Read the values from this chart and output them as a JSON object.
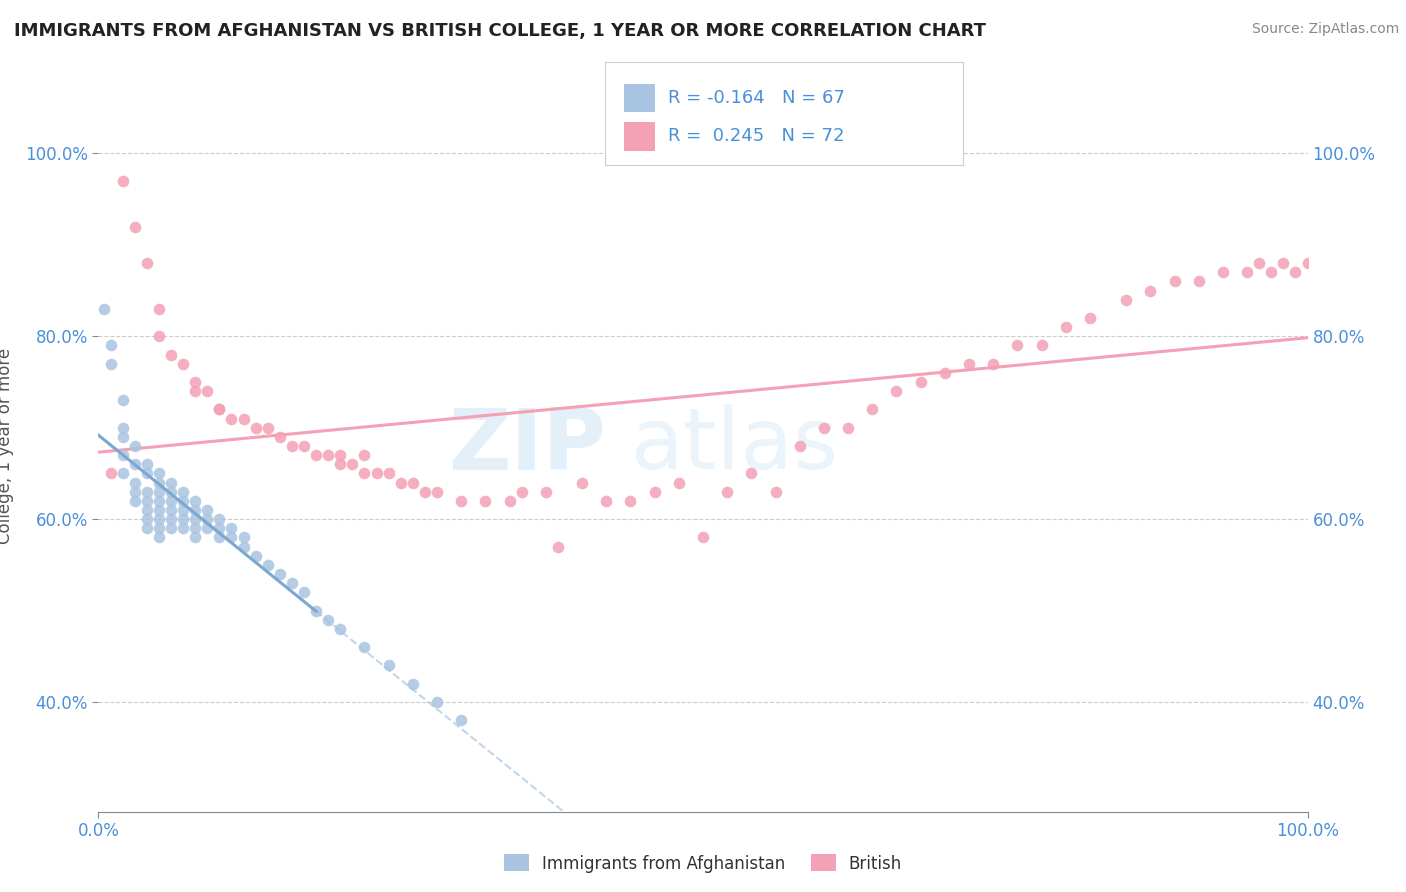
{
  "title": "IMMIGRANTS FROM AFGHANISTAN VS BRITISH COLLEGE, 1 YEAR OR MORE CORRELATION CHART",
  "source_text": "Source: ZipAtlas.com",
  "ylabel": "College, 1 year or more",
  "xlim": [
    0.0,
    1.0
  ],
  "ylim": [
    0.28,
    1.08
  ],
  "xtick_positions": [
    0.0,
    0.2,
    0.4,
    0.6,
    0.8,
    1.0
  ],
  "xtick_labels": [
    "0.0%",
    "",
    "",
    "",
    "",
    "100.0%"
  ],
  "ytick_positions": [
    0.4,
    0.6,
    0.8,
    1.0
  ],
  "ytick_labels": [
    "40.0%",
    "60.0%",
    "80.0%",
    "100.0%"
  ],
  "R_afghanistan": -0.164,
  "N_afghanistan": 67,
  "R_british": 0.245,
  "N_british": 72,
  "watermark_zip": "ZIP",
  "watermark_atlas": "atlas",
  "background_color": "#ffffff",
  "grid_color": "#cccccc",
  "title_color": "#222222",
  "tick_label_color": "#4a90d9",
  "afghanistan_dot_color": "#a8c4e0",
  "british_dot_color": "#f4a0b5",
  "british_line_color": "#f4a0b5",
  "afghanistan_solid_line_color": "#7ba8d0",
  "afghanistan_dashed_line_color": "#a8c4e0",
  "afghanistan_points_x": [
    0.005,
    0.01,
    0.01,
    0.02,
    0.02,
    0.02,
    0.02,
    0.02,
    0.03,
    0.03,
    0.03,
    0.03,
    0.03,
    0.04,
    0.04,
    0.04,
    0.04,
    0.04,
    0.04,
    0.04,
    0.05,
    0.05,
    0.05,
    0.05,
    0.05,
    0.05,
    0.05,
    0.05,
    0.06,
    0.06,
    0.06,
    0.06,
    0.06,
    0.06,
    0.07,
    0.07,
    0.07,
    0.07,
    0.07,
    0.08,
    0.08,
    0.08,
    0.08,
    0.08,
    0.09,
    0.09,
    0.09,
    0.1,
    0.1,
    0.1,
    0.11,
    0.11,
    0.12,
    0.12,
    0.13,
    0.14,
    0.15,
    0.16,
    0.17,
    0.18,
    0.19,
    0.2,
    0.22,
    0.24,
    0.26,
    0.28,
    0.3
  ],
  "afghanistan_points_y": [
    0.83,
    0.79,
    0.77,
    0.73,
    0.7,
    0.69,
    0.67,
    0.65,
    0.68,
    0.66,
    0.64,
    0.63,
    0.62,
    0.66,
    0.65,
    0.63,
    0.62,
    0.61,
    0.6,
    0.59,
    0.65,
    0.64,
    0.63,
    0.62,
    0.61,
    0.6,
    0.59,
    0.58,
    0.64,
    0.63,
    0.62,
    0.61,
    0.6,
    0.59,
    0.63,
    0.62,
    0.61,
    0.6,
    0.59,
    0.62,
    0.61,
    0.6,
    0.59,
    0.58,
    0.61,
    0.6,
    0.59,
    0.6,
    0.59,
    0.58,
    0.59,
    0.58,
    0.58,
    0.57,
    0.56,
    0.55,
    0.54,
    0.53,
    0.52,
    0.5,
    0.49,
    0.48,
    0.46,
    0.44,
    0.42,
    0.4,
    0.38
  ],
  "british_points_x": [
    0.01,
    0.02,
    0.03,
    0.04,
    0.05,
    0.05,
    0.06,
    0.07,
    0.08,
    0.08,
    0.09,
    0.1,
    0.1,
    0.11,
    0.12,
    0.13,
    0.14,
    0.15,
    0.16,
    0.17,
    0.18,
    0.19,
    0.2,
    0.2,
    0.21,
    0.22,
    0.22,
    0.23,
    0.24,
    0.25,
    0.26,
    0.27,
    0.28,
    0.3,
    0.32,
    0.34,
    0.35,
    0.37,
    0.38,
    0.4,
    0.42,
    0.44,
    0.46,
    0.48,
    0.5,
    0.52,
    0.54,
    0.56,
    0.58,
    0.6,
    0.62,
    0.64,
    0.66,
    0.68,
    0.7,
    0.72,
    0.74,
    0.76,
    0.78,
    0.8,
    0.82,
    0.85,
    0.87,
    0.89,
    0.91,
    0.93,
    0.95,
    0.96,
    0.97,
    0.98,
    0.99,
    1.0
  ],
  "british_points_y": [
    0.65,
    0.97,
    0.92,
    0.88,
    0.83,
    0.8,
    0.78,
    0.77,
    0.75,
    0.74,
    0.74,
    0.72,
    0.72,
    0.71,
    0.71,
    0.7,
    0.7,
    0.69,
    0.68,
    0.68,
    0.67,
    0.67,
    0.66,
    0.67,
    0.66,
    0.65,
    0.67,
    0.65,
    0.65,
    0.64,
    0.64,
    0.63,
    0.63,
    0.62,
    0.62,
    0.62,
    0.63,
    0.63,
    0.57,
    0.64,
    0.62,
    0.62,
    0.63,
    0.64,
    0.58,
    0.63,
    0.65,
    0.63,
    0.68,
    0.7,
    0.7,
    0.72,
    0.74,
    0.75,
    0.76,
    0.77,
    0.77,
    0.79,
    0.79,
    0.81,
    0.82,
    0.84,
    0.85,
    0.86,
    0.86,
    0.87,
    0.87,
    0.88,
    0.87,
    0.88,
    0.87,
    0.88
  ]
}
